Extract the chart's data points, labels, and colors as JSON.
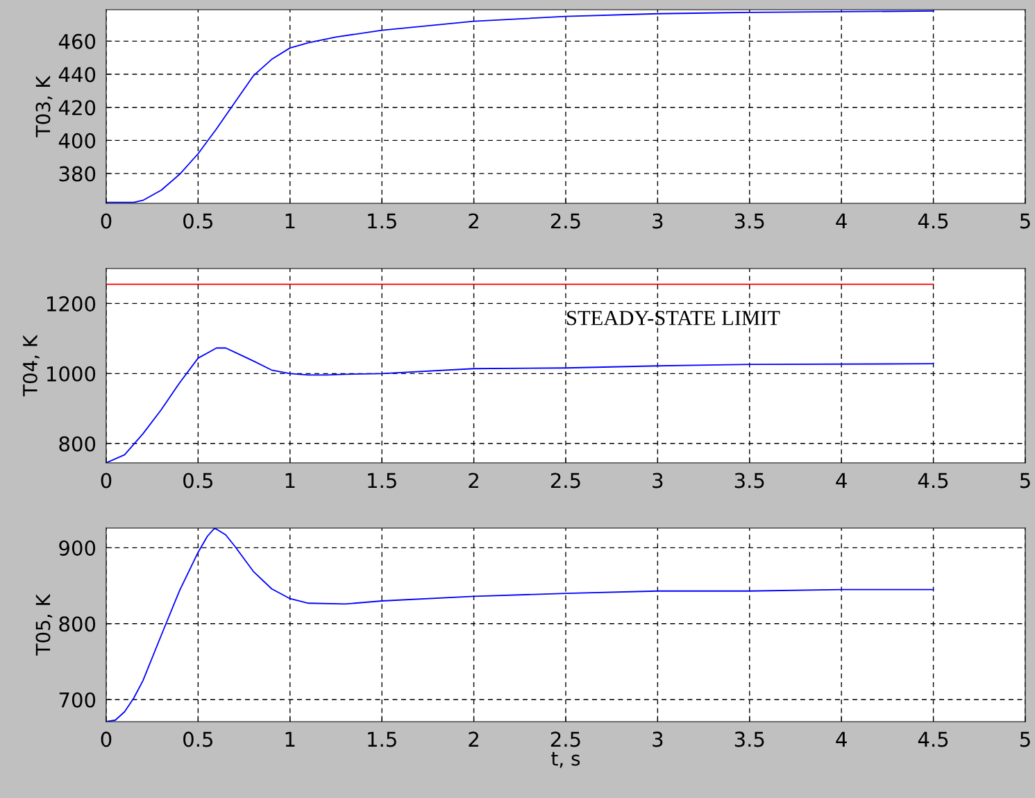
{
  "chart_data": [
    {
      "type": "line",
      "ylabel": "T03, K",
      "xlim": [
        0,
        5
      ],
      "xticks": [
        0,
        0.5,
        1,
        1.5,
        2,
        2.5,
        3,
        3.5,
        4,
        4.5,
        5
      ],
      "ylim": [
        362,
        479
      ],
      "yticks": [
        380,
        400,
        420,
        440,
        460
      ],
      "grid": true,
      "line_style": "solid",
      "series": [
        {
          "color": "#0000ff",
          "x": [
            0,
            0.15,
            0.2,
            0.3,
            0.4,
            0.5,
            0.6,
            0.7,
            0.8,
            0.9,
            1.0,
            1.1,
            1.25,
            1.5,
            2.0,
            2.5,
            3.0,
            3.5,
            4.5
          ],
          "values": [
            362.6,
            362.6,
            363.8,
            370,
            379.6,
            392,
            407,
            423,
            439,
            449,
            455.9,
            459,
            462.5,
            466.6,
            472,
            475,
            476.6,
            477.4,
            478.2
          ]
        }
      ]
    },
    {
      "type": "line",
      "ylabel": "T04, K",
      "xlim": [
        0,
        5
      ],
      "xticks": [
        0,
        0.5,
        1,
        1.5,
        2,
        2.5,
        3,
        3.5,
        4,
        4.5,
        5
      ],
      "ylim": [
        745,
        1300
      ],
      "yticks": [
        800,
        1000,
        1200
      ],
      "grid": true,
      "line_style": "solid",
      "annotations": [
        "STEADY-STATE LIMIT"
      ],
      "series": [
        {
          "color": "#0000ff",
          "x": [
            0,
            0.1,
            0.2,
            0.3,
            0.4,
            0.5,
            0.6,
            0.65,
            0.7,
            0.8,
            0.9,
            1.0,
            1.1,
            1.2,
            1.3,
            1.5,
            2.0,
            2.5,
            3.0,
            3.5,
            4.5
          ],
          "values": [
            745,
            768,
            828,
            897,
            974,
            1044,
            1073,
            1073,
            1061,
            1036,
            1010,
            1000,
            996,
            996,
            998,
            1000,
            1014,
            1016,
            1022,
            1026,
            1028
          ]
        },
        {
          "color": "#ff0000",
          "x": [
            0,
            4.5
          ],
          "values": [
            1255,
            1255
          ]
        }
      ]
    },
    {
      "type": "line",
      "ylabel": "T05, K",
      "xlabel": "t, s",
      "xlim": [
        0,
        5
      ],
      "xticks": [
        0,
        0.5,
        1,
        1.5,
        2,
        2.5,
        3,
        3.5,
        4,
        4.5,
        5
      ],
      "ylim": [
        671,
        926
      ],
      "yticks": [
        700,
        800,
        900
      ],
      "grid": true,
      "line_style": "solid",
      "series": [
        {
          "color": "#0000ff",
          "x": [
            0,
            0.05,
            0.1,
            0.15,
            0.2,
            0.3,
            0.4,
            0.5,
            0.55,
            0.59,
            0.65,
            0.7,
            0.8,
            0.9,
            1.0,
            1.1,
            1.3,
            1.5,
            2.0,
            2.5,
            3.0,
            3.5,
            4.0,
            4.5
          ],
          "values": [
            671,
            673,
            684,
            702,
            725,
            785,
            844,
            894,
            915,
            926,
            917,
            902,
            869,
            846,
            833,
            827,
            826,
            830,
            836,
            840,
            843,
            843,
            845,
            845
          ]
        }
      ]
    }
  ]
}
